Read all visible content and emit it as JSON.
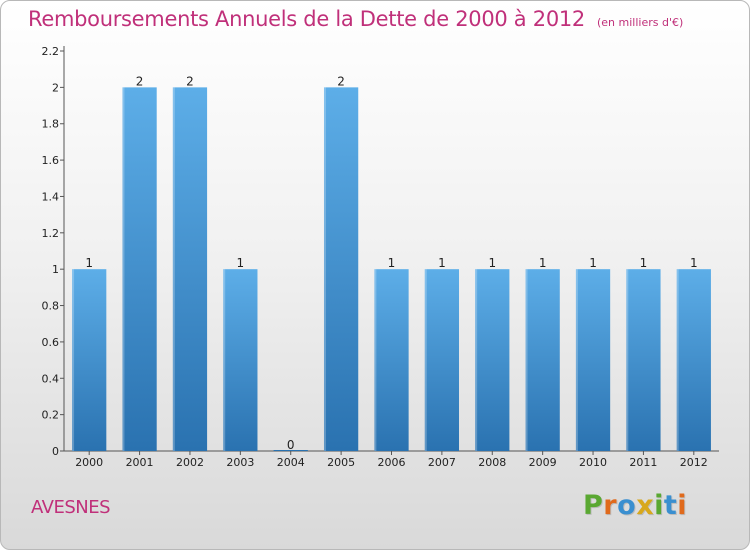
{
  "title": "Remboursements Annuels de la Dette de 2000 à 2012",
  "unit_label": "(en milliers d'€)",
  "footer": {
    "town": "AVESNES",
    "logo": {
      "text": "Proxiti",
      "letter_colors": [
        "#5aa832",
        "#e06a1c",
        "#3a8fd0",
        "#d8a81c",
        "#5aa832",
        "#3a8fd0",
        "#e06a1c"
      ]
    }
  },
  "colors": {
    "title": "#c0307a",
    "bar_top": "#5daee8",
    "bar_bottom": "#2a72b0",
    "axis": "#555555",
    "text": "#222222"
  },
  "chart_data": {
    "type": "bar",
    "categories": [
      "2000",
      "2001",
      "2002",
      "2003",
      "2004",
      "2005",
      "2006",
      "2007",
      "2008",
      "2009",
      "2010",
      "2011",
      "2012"
    ],
    "values": [
      1,
      2,
      2,
      1,
      0,
      2,
      1,
      1,
      1,
      1,
      1,
      1,
      1
    ],
    "value_labels": [
      "1",
      "2",
      "2",
      "1",
      "0",
      "2",
      "1",
      "1",
      "1",
      "1",
      "1",
      "1",
      "1"
    ],
    "yticks": [
      "0",
      "0.2",
      "0.4",
      "0.6",
      "0.8",
      "1",
      "1.2",
      "1.4",
      "1.6",
      "1.8",
      "2",
      "2.2"
    ],
    "ylim": [
      0,
      2.2
    ],
    "xlabel": "",
    "ylabel": "",
    "grid": false,
    "legend": "none"
  }
}
